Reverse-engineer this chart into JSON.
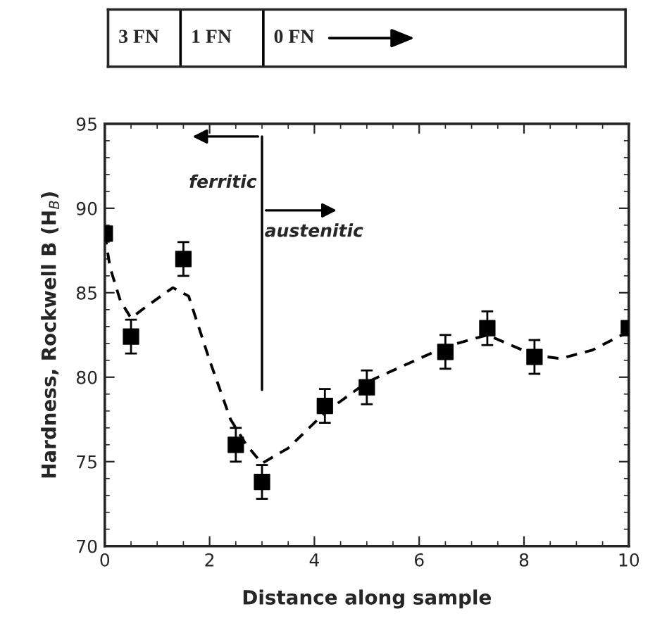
{
  "chart_data": {
    "type": "scatter",
    "xlabel": "Distance along sample",
    "ylabel": "Hardness, Rockwell B (H$_{B}$)",
    "xlim": [
      0,
      10
    ],
    "xticks": [
      0,
      2,
      4,
      6,
      8,
      10
    ],
    "ylim": [
      70,
      95
    ],
    "yticks": [
      70,
      75,
      80,
      85,
      90,
      95
    ],
    "grid": false,
    "legend": false,
    "series": [
      {
        "color": "#000000",
        "marker": "square",
        "x": [
          0,
          0.5,
          1.5,
          2.5,
          3,
          4.2,
          5,
          6.5,
          7.3,
          8.2,
          10
        ],
        "values": [
          88.5,
          82.4,
          87,
          76,
          73.8,
          78.3,
          79.4,
          81.5,
          82.9,
          81.2,
          82.9
        ],
        "errors": [
          null,
          1,
          1,
          1,
          1,
          1,
          1,
          1,
          1,
          1,
          null
        ]
      },
      {
        "type": "line",
        "color": "#000000",
        "line_style": "dashed",
        "x": [
          0,
          0.1,
          0.3,
          0.5,
          0.8,
          1.3,
          1.6,
          2,
          2.4,
          2.7,
          3,
          3.5,
          4.2,
          5,
          6.5,
          7.3,
          8.2,
          8.7,
          9.3,
          10
        ],
        "values": [
          88.5,
          86.5,
          84.5,
          83.5,
          84.2,
          85.3,
          84.8,
          81,
          77.5,
          76,
          74.9,
          75.8,
          77.9,
          79.7,
          81.8,
          82.5,
          81.3,
          81.1,
          81.6,
          82.7
        ]
      }
    ],
    "ref_lines": [
      {
        "axis": "x",
        "value": 3,
        "color": "#000000"
      }
    ],
    "annotations": [
      "3 FN",
      "1 FN",
      "0 FN",
      {
        "text": "ferritic",
        "x": 2.9,
        "y": 91.5
      },
      {
        "text": "austenitic",
        "x": 3.05,
        "y": 88.6
      }
    ]
  }
}
